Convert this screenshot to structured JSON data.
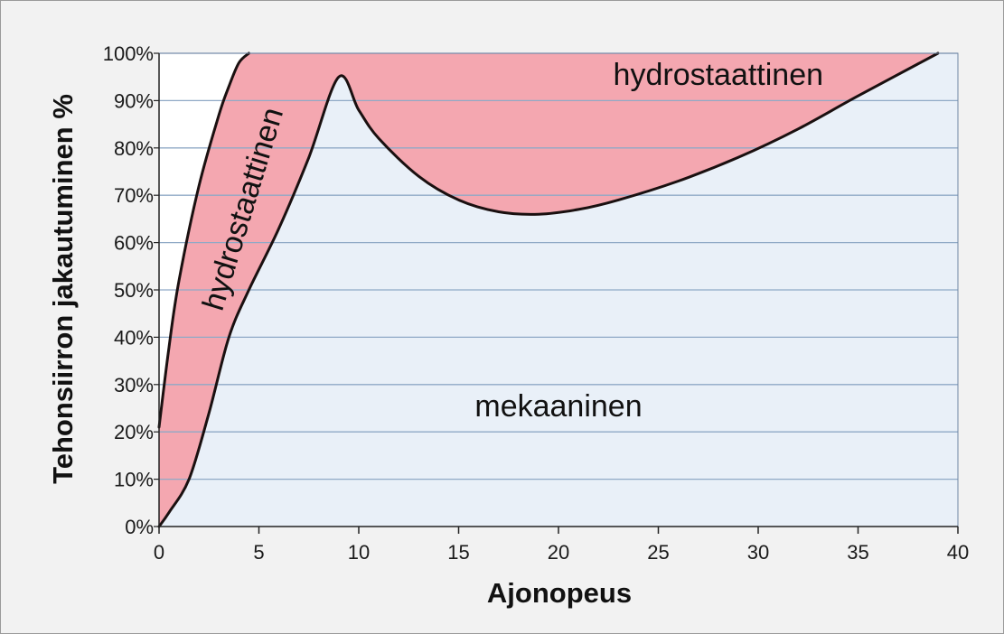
{
  "chart_data": {
    "type": "area",
    "title": "",
    "xlabel": "Ajonopeus",
    "ylabel": "Tehonsiirron jakautuminen %",
    "xlim": [
      0,
      40
    ],
    "ylim": [
      0,
      100
    ],
    "x_ticks": [
      0,
      5,
      10,
      15,
      20,
      25,
      30,
      35,
      40
    ],
    "y_ticks": [
      0,
      10,
      20,
      30,
      40,
      50,
      60,
      70,
      80,
      90,
      100
    ],
    "y_tick_labels": [
      "0%",
      "10%",
      "20%",
      "30%",
      "40%",
      "50%",
      "60%",
      "70%",
      "80%",
      "90%",
      "100%"
    ],
    "grid": "horizontal",
    "series": [
      {
        "name": "mekaaninen",
        "boundary": [
          [
            0,
            0
          ],
          [
            0.5,
            3
          ],
          [
            1.5,
            10
          ],
          [
            2.5,
            24
          ],
          [
            3.5,
            40
          ],
          [
            4.5,
            50
          ],
          [
            6,
            63
          ],
          [
            7.5,
            78
          ],
          [
            9,
            95
          ],
          [
            10,
            88
          ],
          [
            11,
            82
          ],
          [
            13,
            74
          ],
          [
            15,
            69
          ],
          [
            17,
            66.5
          ],
          [
            19,
            66
          ],
          [
            21,
            67
          ],
          [
            23,
            69
          ],
          [
            26,
            73
          ],
          [
            29,
            78
          ],
          [
            32,
            84
          ],
          [
            35,
            91
          ],
          [
            39,
            100
          ]
        ]
      },
      {
        "name": "hydrostaattinen",
        "boundary": [
          [
            0,
            21
          ],
          [
            0.5,
            38
          ],
          [
            1,
            52
          ],
          [
            2,
            72
          ],
          [
            3,
            87
          ],
          [
            3.5,
            93
          ],
          [
            4,
            98
          ],
          [
            4.5,
            100
          ],
          [
            40,
            100
          ]
        ]
      }
    ],
    "annotations": [
      {
        "text": "hydrostaattinen",
        "x": 28,
        "y": 95,
        "rotation": 0
      },
      {
        "text": "hydrostaattinen",
        "x": 4.3,
        "y": 67,
        "rotation": -73
      },
      {
        "text": "mekaaninen",
        "x": 20,
        "y": 25,
        "rotation": 0
      }
    ],
    "colors": {
      "mechanical": "#e9f0f8",
      "hydrostatic": "#f4a7b0",
      "free": "#ffffff",
      "grid": "#8fa9c6",
      "curve": "#1a1010"
    }
  }
}
